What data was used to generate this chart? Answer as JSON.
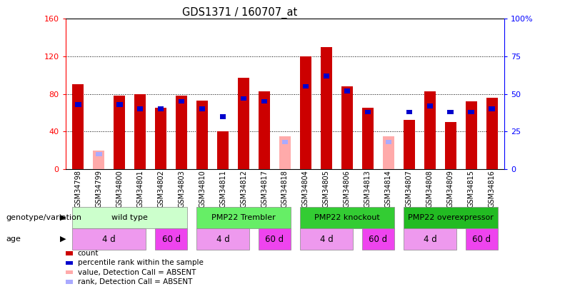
{
  "title": "GDS1371 / 160707_at",
  "samples": [
    "GSM34798",
    "GSM34799",
    "GSM34800",
    "GSM34801",
    "GSM34802",
    "GSM34803",
    "GSM34810",
    "GSM34811",
    "GSM34812",
    "GSM34817",
    "GSM34818",
    "GSM34804",
    "GSM34805",
    "GSM34806",
    "GSM34813",
    "GSM34814",
    "GSM34807",
    "GSM34808",
    "GSM34809",
    "GSM34815",
    "GSM34816"
  ],
  "count_values": [
    90,
    0,
    78,
    80,
    65,
    78,
    73,
    40,
    97,
    83,
    0,
    120,
    130,
    88,
    65,
    0,
    52,
    83,
    50,
    72,
    76
  ],
  "rank_values": [
    43,
    0,
    43,
    40,
    40,
    45,
    40,
    35,
    47,
    45,
    0,
    55,
    62,
    52,
    38,
    0,
    38,
    42,
    38,
    38,
    40
  ],
  "absent_count": [
    0,
    20,
    0,
    0,
    0,
    0,
    0,
    0,
    0,
    0,
    35,
    0,
    0,
    0,
    0,
    35,
    0,
    0,
    0,
    0,
    0
  ],
  "absent_rank": [
    0,
    10,
    0,
    0,
    0,
    0,
    0,
    0,
    0,
    0,
    18,
    0,
    0,
    0,
    0,
    18,
    0,
    0,
    0,
    0,
    0
  ],
  "genotype_groups": [
    {
      "label": "wild type",
      "start": 0,
      "end": 6,
      "color": "#ccffcc"
    },
    {
      "label": "PMP22 Trembler",
      "start": 6,
      "end": 11,
      "color": "#66ee66"
    },
    {
      "label": "PMP22 knockout",
      "start": 11,
      "end": 16,
      "color": "#33cc33"
    },
    {
      "label": "PMP22 overexpressor",
      "start": 16,
      "end": 21,
      "color": "#22bb22"
    }
  ],
  "age_groups": [
    {
      "label": "4 d",
      "start": 0,
      "end": 4,
      "color": "#ee99ee"
    },
    {
      "label": "60 d",
      "start": 4,
      "end": 6,
      "color": "#ee44ee"
    },
    {
      "label": "4 d",
      "start": 6,
      "end": 9,
      "color": "#ee99ee"
    },
    {
      "label": "60 d",
      "start": 9,
      "end": 11,
      "color": "#ee44ee"
    },
    {
      "label": "4 d",
      "start": 11,
      "end": 14,
      "color": "#ee99ee"
    },
    {
      "label": "60 d",
      "start": 14,
      "end": 16,
      "color": "#ee44ee"
    },
    {
      "label": "4 d",
      "start": 16,
      "end": 19,
      "color": "#ee99ee"
    },
    {
      "label": "60 d",
      "start": 19,
      "end": 21,
      "color": "#ee44ee"
    }
  ],
  "left_ylim": [
    0,
    160
  ],
  "right_ylim": [
    0,
    100
  ],
  "left_yticks": [
    0,
    40,
    80,
    120,
    160
  ],
  "right_yticks": [
    0,
    25,
    50,
    75,
    100
  ],
  "right_yticklabels": [
    "0",
    "25",
    "50",
    "75",
    "100%"
  ],
  "bar_color": "#cc0000",
  "rank_color": "#0000cc",
  "absent_bar_color": "#ffaaaa",
  "absent_rank_color": "#aaaaff",
  "legend_items": [
    {
      "label": "count",
      "color": "#cc0000"
    },
    {
      "label": "percentile rank within the sample",
      "color": "#0000cc"
    },
    {
      "label": "value, Detection Call = ABSENT",
      "color": "#ffaaaa"
    },
    {
      "label": "rank, Detection Call = ABSENT",
      "color": "#aaaaff"
    }
  ]
}
